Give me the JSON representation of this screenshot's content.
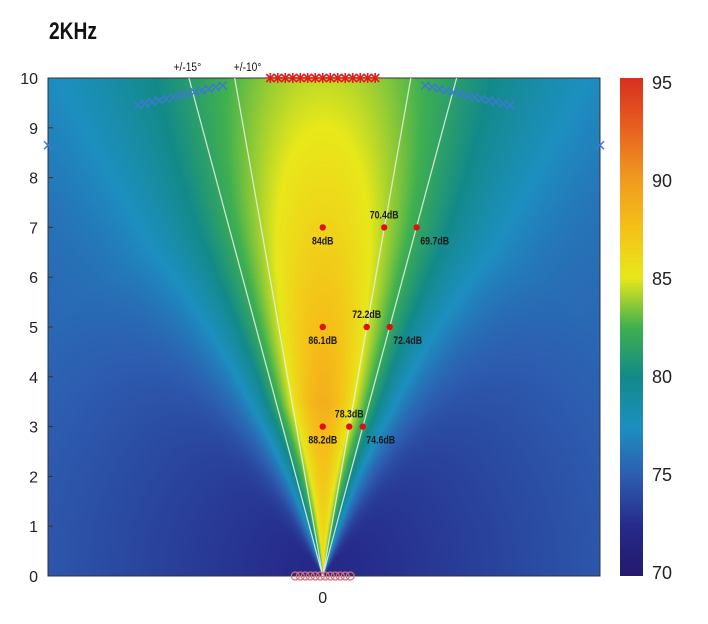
{
  "chart_data": {
    "type": "heatmap",
    "title": "2KHz",
    "xlabel": "",
    "ylabel": "",
    "xlim": [
      -5.5,
      5.55
    ],
    "ylim": [
      0,
      10
    ],
    "x_ticks": [
      0
    ],
    "y_ticks": [
      0,
      1,
      2,
      3,
      4,
      5,
      6,
      7,
      8,
      9,
      10
    ],
    "grid": false,
    "colorbar": {
      "range": [
        70,
        95
      ],
      "ticks": [
        70,
        75,
        80,
        85,
        90,
        95
      ],
      "colormap": [
        "#231a6e",
        "#262a8a",
        "#2d5db0",
        "#1d8fc0",
        "#138a8a",
        "#40b050",
        "#e8e81a",
        "#f5c018",
        "#f09a20",
        "#e86020",
        "#d83020"
      ]
    },
    "angle_lines": [
      {
        "label": "+/-15°",
        "angle_deg": 15
      },
      {
        "label": "+/-10°",
        "angle_deg": 10
      }
    ],
    "measurement_points": [
      {
        "x": 0,
        "y": 7,
        "label": "84dB"
      },
      {
        "x": 1.23,
        "y": 7,
        "label": "70.4dB"
      },
      {
        "x": 1.88,
        "y": 7,
        "label": "69.7dB"
      },
      {
        "x": 0,
        "y": 5,
        "label": "86.1dB"
      },
      {
        "x": 0.88,
        "y": 5,
        "label": "72.2dB"
      },
      {
        "x": 1.34,
        "y": 5,
        "label": "72.4dB"
      },
      {
        "x": 0,
        "y": 3,
        "label": "88.2dB"
      },
      {
        "x": 0.53,
        "y": 3,
        "label": "78.3dB"
      },
      {
        "x": 0.8,
        "y": 3,
        "label": "74.6dB"
      }
    ],
    "marker_groups": [
      {
        "marker": "asterisk",
        "color": "#e02020",
        "x_range": [
          -1.05,
          1.05
        ],
        "y": 10
      },
      {
        "marker": "x",
        "color": "#3a7ad0",
        "x_range": [
          -3.7,
          -2.0
        ],
        "y_range": [
          9.45,
          9.85
        ]
      },
      {
        "marker": "x",
        "color": "#3a7ad0",
        "x_range": [
          2.05,
          3.75
        ],
        "y_range": [
          9.85,
          9.45
        ]
      },
      {
        "marker": "x",
        "color": "#3a7ad0",
        "x": [
          -5.5,
          5.55
        ],
        "y": 8.65
      },
      {
        "marker": "circle",
        "color": "#e07080",
        "x_range": [
          -0.55,
          0.55
        ],
        "y": 0
      }
    ],
    "colors": {
      "point": "#e01010",
      "angle_line": "#e8f0e0"
    }
  }
}
